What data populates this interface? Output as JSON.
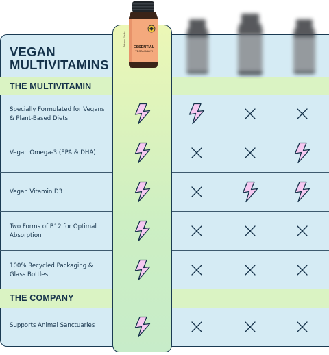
{
  "title_line1": "VEGAN",
  "title_line2": "MULTIVITAMINS",
  "sections": [
    {
      "title": "THE MULTIVITAMIN"
    },
    {
      "title": "THE COMPANY"
    }
  ],
  "featured_product": {
    "brand": "Future Kind+",
    "name_line1": "ESSENTIAL",
    "name_line2": "VEGAN MULTI"
  },
  "rows": [
    {
      "label_line1": "Specially Formulated for Vegans",
      "label_line2": "& Plant-Based Diets",
      "values": [
        "yes",
        "yes",
        "no",
        "no"
      ]
    },
    {
      "label_line1": "Vegan Omega-3 (EPA & DHA)",
      "label_line2": "",
      "values": [
        "yes",
        "no",
        "no",
        "yes"
      ]
    },
    {
      "label_line1": "Vegan Vitamin D3",
      "label_line2": "",
      "values": [
        "yes",
        "no",
        "yes",
        "yes"
      ]
    },
    {
      "label_line1": "Two Forms of B12 for Optimal",
      "label_line2": "Absorption",
      "values": [
        "yes",
        "no",
        "no",
        "no"
      ]
    },
    {
      "label_line1": "100% Recycled Packaging &",
      "label_line2": "Glass Bottles",
      "values": [
        "yes",
        "no",
        "no",
        "no"
      ]
    },
    {
      "label_line1": "Supports Animal Sanctuaries",
      "label_line2": "",
      "values": [
        "yes",
        "no",
        "no",
        "no"
      ]
    }
  ],
  "icons": {
    "yes": "lightning-icon",
    "no": "x-icon"
  },
  "colors": {
    "navy": "#15324a",
    "table_bg": "#d5ebf4",
    "section_band": "#daf3c3",
    "highlight_col": "#ecf7b6",
    "lightning_fill": "#f6c9f1",
    "bottle_label": "#f4a97d"
  }
}
